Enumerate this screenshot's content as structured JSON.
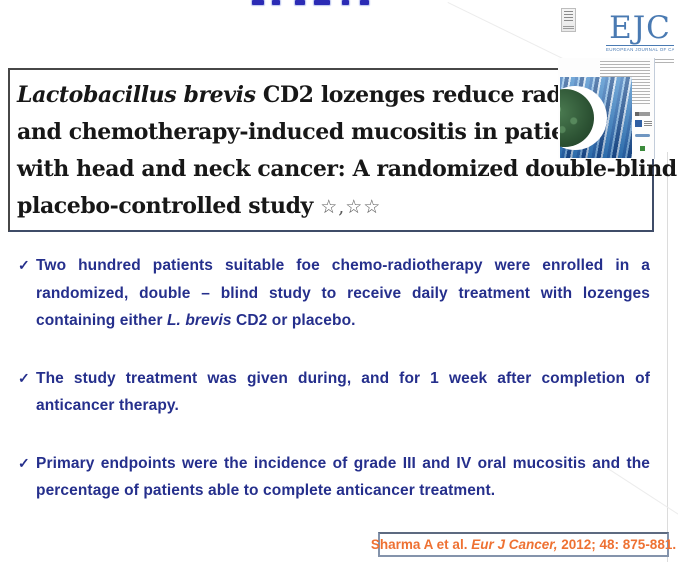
{
  "colors": {
    "bullet_text": "#252f8c",
    "title_text": "#171717",
    "title_border": "#3f4c68",
    "citation_text": "#ee7132",
    "citation_border": "#8493ab",
    "ejc_blue": "#4a7ab2",
    "cover_blue_dark": "#1b4e8f",
    "cover_blue_mid": "#2e6db4",
    "cover_blue_light": "#8fc0e8",
    "cover_green": "#2c5233"
  },
  "header": {
    "ejc_logo": {
      "text": "EJC",
      "tagline": "european journal of cancer"
    }
  },
  "title_box": {
    "lines": [
      {
        "parts": [
          {
            "t": "Lactobacillus brevis",
            "style": "italic"
          },
          {
            "t": " CD2 lozenges reduce radiation-"
          }
        ]
      },
      {
        "parts": [
          {
            "t": "and chemotherapy-induced mucositis in patients"
          }
        ]
      },
      {
        "parts": [
          {
            "t": "with head and neck cancer: A randomized double-blind"
          }
        ]
      },
      {
        "parts": [
          {
            "t": "placebo-controlled study "
          },
          {
            "t": "☆,☆☆",
            "style": "stars"
          }
        ]
      }
    ]
  },
  "bullets": {
    "check": "✓",
    "items": [
      {
        "parts": [
          {
            "t": "Two hundred patients suitable foe chemo-radiotherapy were enrolled in a randomized, double – blind study to receive daily treatment with lozenges containing either "
          },
          {
            "t": "L. brevis",
            "style": "italic"
          },
          {
            "t": " CD2 or placebo."
          }
        ]
      },
      {
        "parts": [
          {
            "t": "The study treatment was given during, and for 1 week after completion of anticancer therapy."
          }
        ]
      },
      {
        "parts": [
          {
            "t": "Primary endpoints were the  incidence of grade III and IV oral mucositis and the percentage of patients able to complete anticancer treatment."
          }
        ]
      }
    ]
  },
  "citation": {
    "parts": [
      {
        "t": "Sharma A et al. "
      },
      {
        "t": "Eur J Cancer,",
        "style": "italic"
      },
      {
        "t": " 2012; 48: 875-881."
      }
    ]
  }
}
